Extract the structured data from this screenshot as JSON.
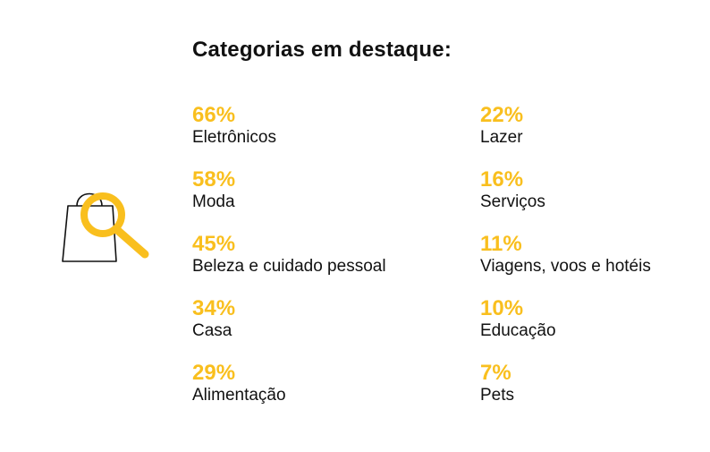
{
  "title": "Categorias em destaque:",
  "colors": {
    "accent": "#f9bf1e",
    "text": "#111111"
  },
  "icon": "shopping-bag-search-icon",
  "left_column": [
    {
      "percent": "66%",
      "label": "Eletrônicos"
    },
    {
      "percent": "58%",
      "label": "Moda"
    },
    {
      "percent": "45%",
      "label": "Beleza e cuidado pessoal"
    },
    {
      "percent": "34%",
      "label": "Casa"
    },
    {
      "percent": "29%",
      "label": "Alimentação"
    }
  ],
  "right_column": [
    {
      "percent": "22%",
      "label": "Lazer"
    },
    {
      "percent": "16%",
      "label": "Serviços"
    },
    {
      "percent": "11%",
      "label": "Viagens, voos e hotéis"
    },
    {
      "percent": "10%",
      "label": "Educação"
    },
    {
      "percent": "7%",
      "label": "Pets"
    }
  ]
}
